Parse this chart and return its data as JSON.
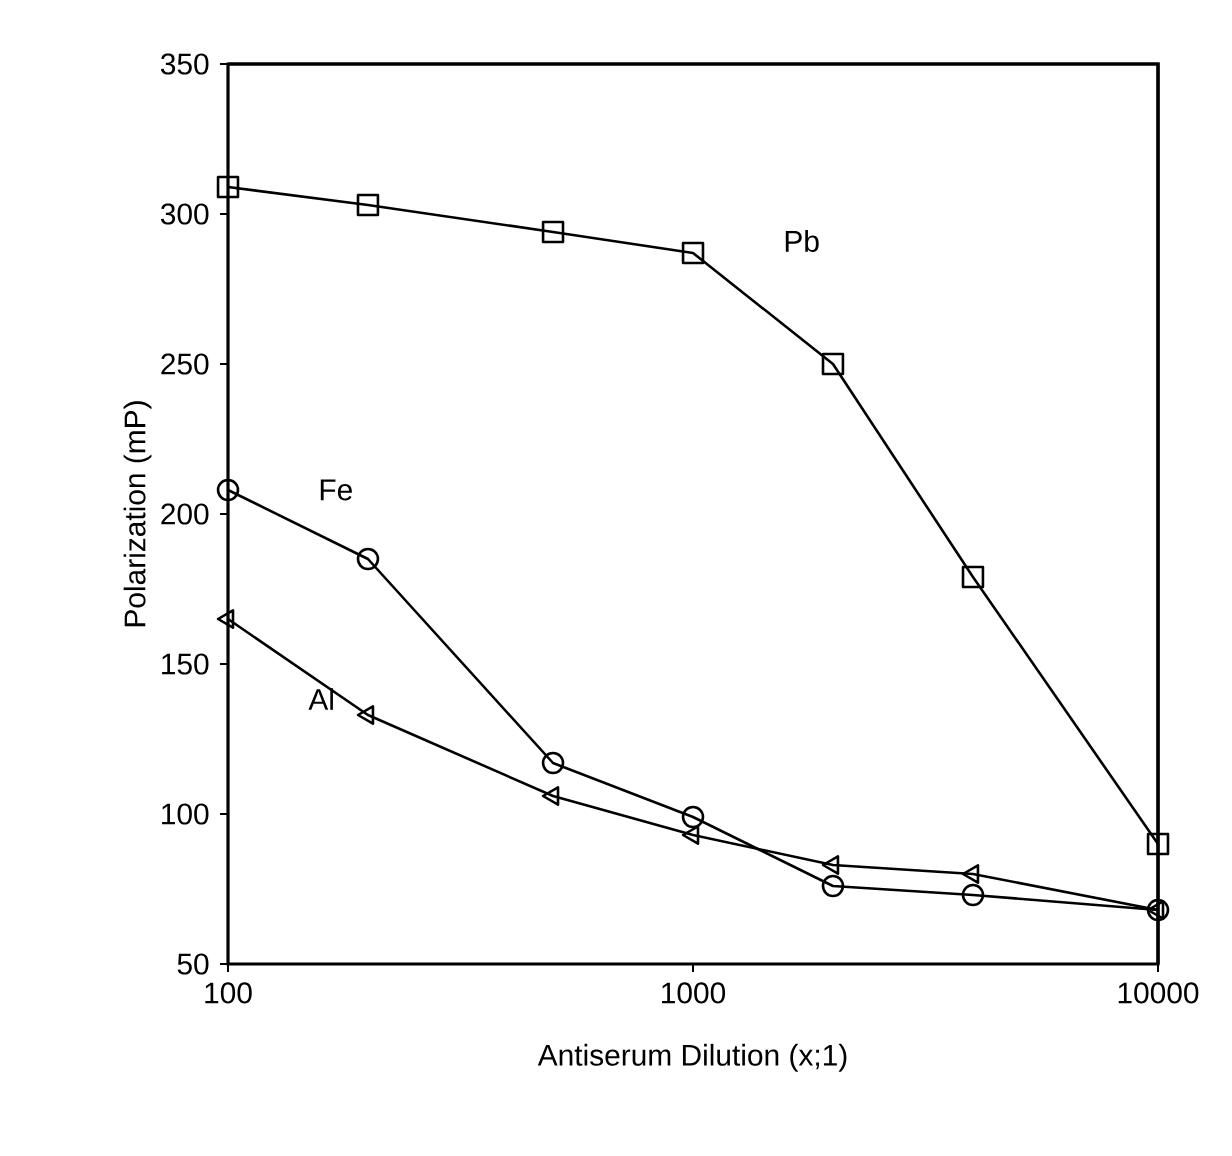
{
  "chart_data": {
    "type": "line",
    "xlabel": "Antiserum Dilution (x;1)",
    "ylabel": "Polarization (mP)",
    "log": "x",
    "xlim": [
      100,
      10000
    ],
    "xticks": [
      100,
      1000,
      10000
    ],
    "ylim": [
      50,
      350
    ],
    "yticks": [
      50,
      100,
      150,
      200,
      250,
      300,
      350
    ],
    "grid": false,
    "legend": false,
    "line_style": "solid",
    "series": [
      {
        "name": "Pb",
        "color": "#000000",
        "marker": "square",
        "x": [
          100,
          200,
          500,
          1000,
          2000,
          4000,
          10000
        ],
        "values": [
          309,
          303,
          294,
          287,
          250,
          179,
          90
        ]
      },
      {
        "name": "Fe",
        "color": "#000000",
        "marker": "circle",
        "x": [
          100,
          200,
          500,
          1000,
          2000,
          4000,
          10000
        ],
        "values": [
          208,
          185,
          117,
          99,
          76,
          73,
          68
        ]
      },
      {
        "name": "Al",
        "color": "#000000",
        "marker": "triangle",
        "x": [
          100,
          200,
          500,
          1000,
          2000,
          4000,
          10000
        ],
        "values": [
          165,
          133,
          106,
          93,
          83,
          80,
          68
        ]
      }
    ]
  }
}
